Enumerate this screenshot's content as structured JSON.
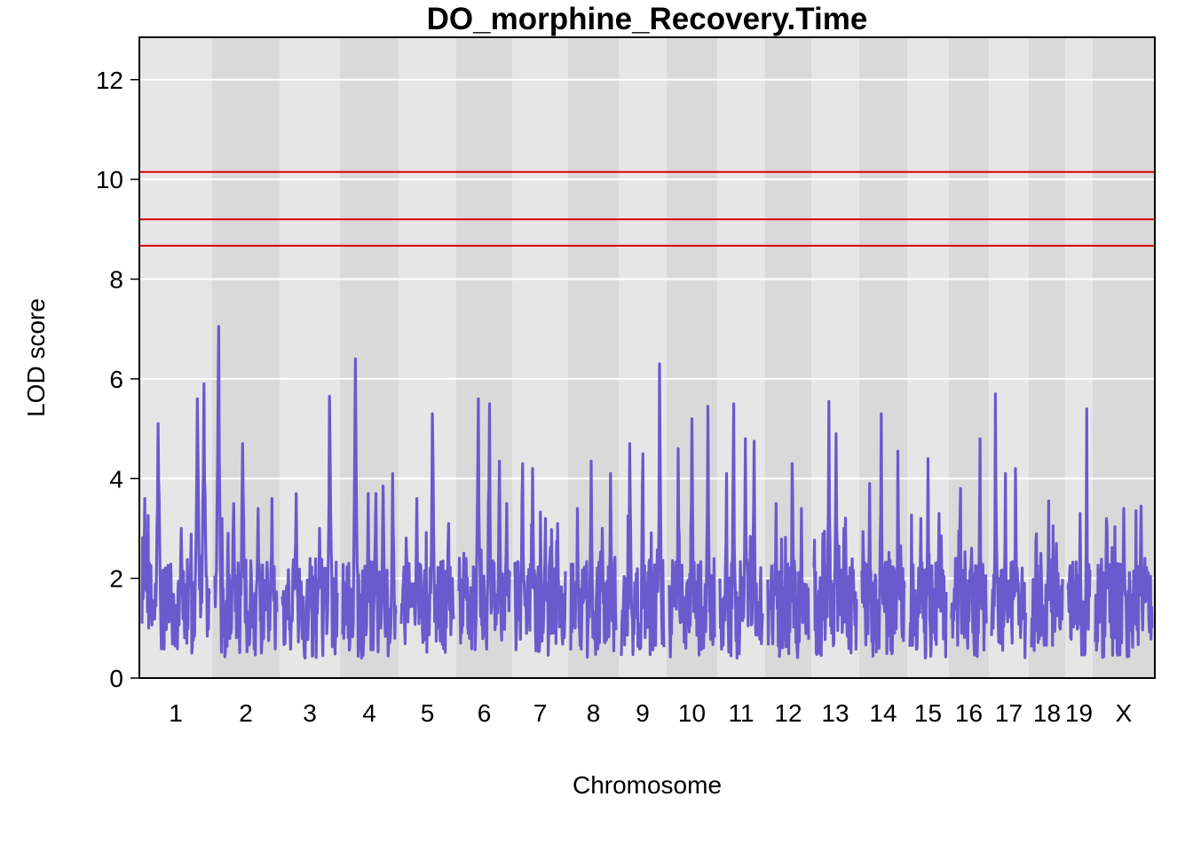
{
  "chart_data": {
    "type": "line",
    "title": "DO_morphine_Recovery.Time",
    "xlabel": "Chromosome",
    "ylabel": "LOD score",
    "ylim": [
      0,
      12.85
    ],
    "yticks": [
      0,
      2,
      4,
      6,
      8,
      10,
      12
    ],
    "grid": true,
    "line_color": "#6A5ACD",
    "threshold_color": "#DD0000",
    "band_colors": [
      "#E6E6E6",
      "#D9D9D9"
    ],
    "thresholds": [
      10.15,
      9.2,
      8.67
    ],
    "chromosomes": [
      {
        "label": "1",
        "peaks": [
          [
            0.04,
            3.6
          ],
          [
            0.24,
            5.1
          ],
          [
            0.38,
            2.1
          ],
          [
            0.58,
            3.0
          ],
          [
            0.82,
            5.6
          ],
          [
            0.92,
            5.9
          ]
        ]
      },
      {
        "label": "2",
        "peaks": [
          [
            0.06,
            7.05
          ],
          [
            0.3,
            3.5
          ],
          [
            0.45,
            4.7
          ],
          [
            0.7,
            3.4
          ],
          [
            0.92,
            3.6
          ]
        ]
      },
      {
        "label": "3",
        "peaks": [
          [
            0.25,
            3.7
          ],
          [
            0.5,
            2.4
          ],
          [
            0.68,
            3.0
          ],
          [
            0.86,
            5.65
          ]
        ]
      },
      {
        "label": "4",
        "peaks": [
          [
            0.24,
            6.4
          ],
          [
            0.48,
            3.7
          ],
          [
            0.62,
            3.7
          ],
          [
            0.76,
            3.85
          ],
          [
            0.94,
            4.1
          ]
        ]
      },
      {
        "label": "5",
        "peaks": [
          [
            0.15,
            2.3
          ],
          [
            0.3,
            3.6
          ],
          [
            0.6,
            5.3
          ],
          [
            0.9,
            3.1
          ]
        ]
      },
      {
        "label": "6",
        "peaks": [
          [
            0.1,
            2.5
          ],
          [
            0.38,
            5.6
          ],
          [
            0.6,
            5.5
          ],
          [
            0.8,
            4.35
          ],
          [
            0.94,
            3.5
          ]
        ]
      },
      {
        "label": "7",
        "peaks": [
          [
            0.15,
            4.3
          ],
          [
            0.35,
            4.2
          ],
          [
            0.6,
            3.2
          ],
          [
            0.85,
            3.1
          ]
        ]
      },
      {
        "label": "8",
        "peaks": [
          [
            0.15,
            3.4
          ],
          [
            0.45,
            4.35
          ],
          [
            0.7,
            3.0
          ],
          [
            0.88,
            4.1
          ]
        ]
      },
      {
        "label": "9",
        "peaks": [
          [
            0.2,
            4.7
          ],
          [
            0.5,
            4.5
          ],
          [
            0.9,
            6.3
          ]
        ]
      },
      {
        "label": "10",
        "peaks": [
          [
            0.2,
            4.6
          ],
          [
            0.5,
            5.2
          ],
          [
            0.85,
            5.45
          ]
        ]
      },
      {
        "label": "11",
        "peaks": [
          [
            0.15,
            4.1
          ],
          [
            0.32,
            5.5
          ],
          [
            0.6,
            4.8
          ],
          [
            0.8,
            4.75
          ]
        ]
      },
      {
        "label": "12",
        "peaks": [
          [
            0.2,
            3.5
          ],
          [
            0.6,
            4.3
          ],
          [
            0.82,
            3.4
          ]
        ]
      },
      {
        "label": "13",
        "peaks": [
          [
            0.35,
            5.55
          ],
          [
            0.52,
            4.9
          ],
          [
            0.7,
            3.0
          ]
        ]
      },
      {
        "label": "14",
        "peaks": [
          [
            0.18,
            3.9
          ],
          [
            0.45,
            5.3
          ],
          [
            0.85,
            4.55
          ]
        ]
      },
      {
        "label": "15",
        "peaks": [
          [
            0.3,
            3.2
          ],
          [
            0.5,
            4.4
          ],
          [
            0.8,
            3.3
          ]
        ]
      },
      {
        "label": "16",
        "peaks": [
          [
            0.25,
            3.8
          ],
          [
            0.58,
            2.6
          ],
          [
            0.82,
            4.8
          ]
        ]
      },
      {
        "label": "17",
        "peaks": [
          [
            0.12,
            5.7
          ],
          [
            0.4,
            4.1
          ],
          [
            0.7,
            4.2
          ]
        ]
      },
      {
        "label": "18",
        "peaks": [
          [
            0.3,
            2.5
          ],
          [
            0.55,
            3.55
          ],
          [
            0.8,
            2.7
          ]
        ]
      },
      {
        "label": "19",
        "peaks": [
          [
            0.2,
            2.2
          ],
          [
            0.55,
            3.3
          ],
          [
            0.85,
            5.4
          ]
        ]
      },
      {
        "label": "X",
        "peaks": [
          [
            0.2,
            3.2
          ],
          [
            0.5,
            3.4
          ],
          [
            0.8,
            3.45
          ]
        ]
      }
    ]
  }
}
